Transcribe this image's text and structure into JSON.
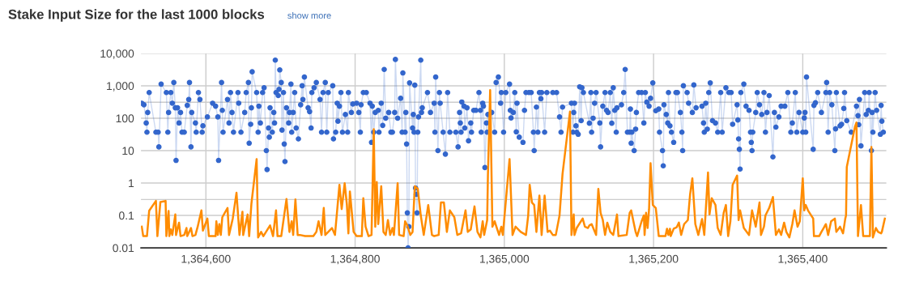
{
  "chart_data": {
    "type": "line",
    "title": "Stake Input Size for the last 1000 blocks",
    "annotations": [
      "show more"
    ],
    "log": true,
    "grid": true,
    "xlim": [
      1364513,
      1365512
    ],
    "xticks": [
      {
        "value": 1364600,
        "label": "1,364,600"
      },
      {
        "value": 1364800,
        "label": "1,364,800"
      },
      {
        "value": 1365000,
        "label": "1,365,000"
      },
      {
        "value": 1365200,
        "label": "1,365,200"
      },
      {
        "value": 1365400,
        "label": "1,365,400"
      }
    ],
    "ylim": [
      0.01,
      10000
    ],
    "yticks": [
      0.01,
      0.1,
      {
        "value": 0.31,
        "label": null
      },
      1,
      10,
      100,
      {
        "value": 312,
        "label": null
      },
      {
        "value": 1000,
        "label": "1,000"
      },
      {
        "value": 10000,
        "label": "10,000"
      }
    ],
    "series": [
      {
        "marker": "circle",
        "color": "#3366cc",
        "x": [
          1364514,
          1364517,
          1364520,
          1364521,
          1364522,
          1364524,
          1364533,
          1364536,
          1364537,
          1364540,
          1364547,
          1364549,
          1364550,
          1364553,
          1364555,
          1364557,
          1364559,
          1364560,
          1364562,
          1364564,
          1364566,
          1364568,
          1364571,
          1364575,
          1364577,
          1364578,
          1364580,
          1364581,
          1364586,
          1364587,
          1364590,
          1364592,
          1364595,
          1364596,
          1364602,
          1364609,
          1364613,
          1364616,
          1364617,
          1364621,
          1364622,
          1364623,
          1364629,
          1364631,
          1364633,
          1364635,
          1364637,
          1364643,
          1364644,
          1364647,
          1364652,
          1364654,
          1364657,
          1364658,
          1364660,
          1364661,
          1364662,
          1364668,
          1364670,
          1364671,
          1364673,
          1364676,
          1364678,
          1364681,
          1364682,
          1364684,
          1364685,
          1364686,
          1364689,
          1364691,
          1364692,
          1364693,
          1364694,
          1364697,
          1364698,
          1364699,
          1364701,
          1364702,
          1364704,
          1364705,
          1364706,
          1364708,
          1364711,
          1364712,
          1364714,
          1364715,
          1364717,
          1364719,
          1364721,
          1364724,
          1364727,
          1364729,
          1364730,
          1364732,
          1364737,
          1364739,
          1364741,
          1364742,
          1364745,
          1364748,
          1364753,
          1364755,
          1364757,
          1364760,
          1364762,
          1364764,
          1364770,
          1364771,
          1364774,
          1364776,
          1364777,
          1364779,
          1364781,
          1364783,
          1364787,
          1364790,
          1364791,
          1364795,
          1364797,
          1364802,
          1364805,
          1364807,
          1364808,
          1364811,
          1364815,
          1364820,
          1364822,
          1364823,
          1364825,
          1364827,
          1364831,
          1364832,
          1364835,
          1364837,
          1364839,
          1364841,
          1364845,
          1364848,
          1364850,
          1364853,
          1364854,
          1364857,
          1364861,
          1364863,
          1364864,
          1364867,
          1364868,
          1364869,
          1364870,
          1364871,
          1364872,
          1364873,
          1364877,
          1364878,
          1364879,
          1364880,
          1364881,
          1364882,
          1364883,
          1364884,
          1364885,
          1364888,
          1364889,
          1364890,
          1364897,
          1364901,
          1364906,
          1364907,
          1364908,
          1364911,
          1364913,
          1364914,
          1364918,
          1364921,
          1364924,
          1364927,
          1364935,
          1364938,
          1364940,
          1364941,
          1364942,
          1364943,
          1364946,
          1364947,
          1364950,
          1364952,
          1364955,
          1364956,
          1364959,
          1364962,
          1364966,
          1364968,
          1364969,
          1364971,
          1364972,
          1364974,
          1364976,
          1364977,
          1364978,
          1364983,
          1364987,
          1364989,
          1364992,
          1364995,
          1364996,
          1364999,
          1365002,
          1365007,
          1365008,
          1365009,
          1365012,
          1365014,
          1365016,
          1365017,
          1365020,
          1365025,
          1365027,
          1365029,
          1365033,
          1365036,
          1365039,
          1365040,
          1365043,
          1365045,
          1365047,
          1365049,
          1365050,
          1365054,
          1365057,
          1365065,
          1365070,
          1365074,
          1365076,
          1365078,
          1365090,
          1365092,
          1365093,
          1365094,
          1365096,
          1365097,
          1365099,
          1365101,
          1365103,
          1365104,
          1365106,
          1365114,
          1365116,
          1365117,
          1365119,
          1365121,
          1365123,
          1365128,
          1365129,
          1365132,
          1365135,
          1365137,
          1365139,
          1365142,
          1365144,
          1365146,
          1365148,
          1365150,
          1365151,
          1365157,
          1365160,
          1365162,
          1365165,
          1365168,
          1365169,
          1365170,
          1365171,
          1365174,
          1365176,
          1365177,
          1365180,
          1365184,
          1365187,
          1365189,
          1365191,
          1365194,
          1365196,
          1365199,
          1365203,
          1365207,
          1365208,
          1365212,
          1365213,
          1365214,
          1365217,
          1365219,
          1365220,
          1365222,
          1365224,
          1365227,
          1365230,
          1365232,
          1365236,
          1365238,
          1365239,
          1365240,
          1365245,
          1365247,
          1365252,
          1365254,
          1365257,
          1365265,
          1365267,
          1365268,
          1365270,
          1365272,
          1365274,
          1365276,
          1365279,
          1365283,
          1365286,
          1365290,
          1365292,
          1365297,
          1365301,
          1365304,
          1365306,
          1365312,
          1365313,
          1365314,
          1365315,
          1365316,
          1365317,
          1365321,
          1365324,
          1365328,
          1365330,
          1365331,
          1365332,
          1365333,
          1365337,
          1365339,
          1365342,
          1365345,
          1365348,
          1365350,
          1365352,
          1365355,
          1365360,
          1365362,
          1365364,
          1365368,
          1365371,
          1365376,
          1365380,
          1365384,
          1365386,
          1365390,
          1365392,
          1365395,
          1365400,
          1365402,
          1365403,
          1365404,
          1365405,
          1365414,
          1365415,
          1365417,
          1365420,
          1365425,
          1365431,
          1365432,
          1365434,
          1365436,
          1365439,
          1365443,
          1365444,
          1365445,
          1365450,
          1365452,
          1365455,
          1365456,
          1365459,
          1365465,
          1365472,
          1365474,
          1365475,
          1365476,
          1365478,
          1365483,
          1365485,
          1365488,
          1365489,
          1365492,
          1365493,
          1365494,
          1365497,
          1365499,
          1365504,
          1365505,
          1365506,
          1365508
        ],
        "values": [
          290,
          260,
          71,
          37,
          150,
          620,
          37,
          37,
          13,
          1130,
          620,
          37,
          150,
          620,
          290,
          1260,
          210,
          5,
          210,
          71,
          150,
          37,
          37,
          250,
          380,
          1260,
          13,
          150,
          71,
          37,
          620,
          380,
          37,
          58,
          110,
          290,
          235,
          110,
          5,
          1260,
          175,
          37,
          380,
          71,
          620,
          150,
          37,
          620,
          290,
          37,
          150,
          620,
          1260,
          17,
          65,
          210,
          2700,
          620,
          37,
          235,
          71,
          620,
          870,
          10,
          2.6,
          50,
          26,
          210,
          37,
          150,
          71,
          6200,
          620,
          500,
          780,
          3100,
          1260,
          43,
          620,
          16,
          4.6,
          210,
          71,
          150,
          1130,
          37,
          150,
          620,
          50,
          23,
          260,
          1000,
          380,
          1860,
          210,
          160,
          50,
          620,
          870,
          1260,
          380,
          37,
          620,
          1260,
          37,
          620,
          1000,
          23,
          37,
          290,
          81,
          235,
          620,
          37,
          130,
          37,
          620,
          150,
          275,
          290,
          150,
          37,
          260,
          620,
          620,
          290,
          18,
          235,
          37,
          150,
          175,
          37,
          290,
          60,
          3200,
          100,
          150,
          37,
          37,
          150,
          6500,
          100,
          410,
          37,
          2500,
          37,
          150,
          16,
          0.12,
          0.01,
          0.045,
          1230,
          50,
          130,
          37,
          1050,
          0.7,
          0.45,
          0.12,
          37,
          110,
          6200,
          150,
          210,
          620,
          150,
          290,
          37,
          1860,
          10,
          620,
          290,
          37,
          7.8,
          620,
          37,
          37,
          13,
          150,
          71,
          37,
          316,
          235,
          50,
          210,
          20,
          71,
          37,
          175,
          175,
          620,
          175,
          37,
          290,
          235,
          3.0,
          71,
          37,
          130,
          150,
          37,
          1260,
          1860,
          290,
          620,
          37,
          620,
          1130,
          175,
          102,
          150,
          620,
          38,
          290,
          26,
          18,
          175,
          620,
          620,
          620,
          37,
          10,
          220,
          37,
          620,
          400,
          620,
          37,
          620,
          620,
          620,
          110,
          37,
          220,
          290,
          37,
          150,
          290,
          58,
          37,
          32,
          930,
          84,
          870,
          620,
          70,
          620,
          37,
          100,
          290,
          620,
          71,
          13,
          235,
          620,
          175,
          150,
          620,
          70,
          870,
          175,
          37,
          210,
          260,
          620,
          3200,
          37,
          37,
          193,
          17,
          37,
          10,
          46,
          150,
          620,
          620,
          71,
          620,
          312,
          235,
          410,
          1230,
          170,
          193,
          37,
          10,
          3.4,
          260,
          130,
          71,
          620,
          58,
          37,
          18,
          620,
          620,
          150,
          37,
          10,
          1000,
          620,
          290,
          150,
          1060,
          210,
          235,
          71,
          37,
          290,
          46,
          620,
          1230,
          84,
          71,
          37,
          620,
          37,
          870,
          620,
          620,
          65,
          260,
          88,
          23,
          11,
          2.7,
          620,
          1130,
          235,
          175,
          37,
          18,
          10,
          37,
          150,
          620,
          260,
          130,
          620,
          37,
          150,
          500,
          6.4,
          150,
          53,
          110,
          235,
          235,
          620,
          37,
          71,
          620,
          37,
          150,
          37,
          102,
          150,
          37,
          1860,
          11,
          250,
          300,
          620,
          150,
          620,
          1260,
          37,
          620,
          260,
          10,
          47,
          620,
          58,
          65,
          200,
          620,
          84,
          37,
          235,
          120,
          63,
          380,
          14,
          620,
          130,
          175,
          620,
          10,
          150,
          37,
          620,
          175,
          32,
          250,
          81,
          37
        ]
      },
      {
        "marker": "none",
        "color": "#ff8c00",
        "x": [
          1364514,
          1364516,
          1364521,
          1364524,
          1364533,
          1364535,
          1364539,
          1364546,
          1364547,
          1364550,
          1364551,
          1364553,
          1364555,
          1364559,
          1364560,
          1364564,
          1364566,
          1364571,
          1364574,
          1364575,
          1364580,
          1364582,
          1364586,
          1364589,
          1364594,
          1364596,
          1364602,
          1364604,
          1364613,
          1364614,
          1364616,
          1364618,
          1364620,
          1364622,
          1364629,
          1364631,
          1364636,
          1364641,
          1364645,
          1364649,
          1364650,
          1364656,
          1364658,
          1364661,
          1364668,
          1364670,
          1364674,
          1364677,
          1364686,
          1364690,
          1364694,
          1364696,
          1364701,
          1364708,
          1364712,
          1364715,
          1364717,
          1364720,
          1364723,
          1364726,
          1364733,
          1364744,
          1364748,
          1364751,
          1364755,
          1364758,
          1364760,
          1364769,
          1364773,
          1364779,
          1364782,
          1364786,
          1364789,
          1364791,
          1364793,
          1364798,
          1364802,
          1364809,
          1364811,
          1364814,
          1364818,
          1364822,
          1364823,
          1364825,
          1364827,
          1364829,
          1364831,
          1364835,
          1364838,
          1364841,
          1364844,
          1364847,
          1364850,
          1364852,
          1364857,
          1364859,
          1364865,
          1364867,
          1364870,
          1364874,
          1364877,
          1364880,
          1364884,
          1364888,
          1364892,
          1364898,
          1364903,
          1364906,
          1364912,
          1364915,
          1364919,
          1364923,
          1364927,
          1364933,
          1364937,
          1364942,
          1364948,
          1364951,
          1364955,
          1364960,
          1364964,
          1364968,
          1364971,
          1364973,
          1364977,
          1364978,
          1364981,
          1364984,
          1364987,
          1364993,
          1364996,
          1364998,
          1365007,
          1365011,
          1365015,
          1365022,
          1365029,
          1365032,
          1365034,
          1365037,
          1365040,
          1365043,
          1365047,
          1365050,
          1365054,
          1365058,
          1365061,
          1365065,
          1365069,
          1365074,
          1365078,
          1365088,
          1365090,
          1365093,
          1365094,
          1365097,
          1365105,
          1365108,
          1365112,
          1365114,
          1365117,
          1365123,
          1365126,
          1365129,
          1365132,
          1365135,
          1365138,
          1365142,
          1365146,
          1365151,
          1365153,
          1365164,
          1365168,
          1365170,
          1365173,
          1365176,
          1365178,
          1365184,
          1365187,
          1365188,
          1365190,
          1365192,
          1365194,
          1365196,
          1365199,
          1365203,
          1365207,
          1365216,
          1365218,
          1365220,
          1365222,
          1365223,
          1365227,
          1365231,
          1365234,
          1365237,
          1365241,
          1365246,
          1365249,
          1365252,
          1365256,
          1365260,
          1365265,
          1365268,
          1365273,
          1365275,
          1365278,
          1365283,
          1365286,
          1365290,
          1365294,
          1365297,
          1365300,
          1365303,
          1365306,
          1365312,
          1365314,
          1365316,
          1365321,
          1365328,
          1365332,
          1365337,
          1365342,
          1365344,
          1365348,
          1365350,
          1365355,
          1365360,
          1365364,
          1365368,
          1365371,
          1365375,
          1365378,
          1365382,
          1365386,
          1365389,
          1365393,
          1365396,
          1365400,
          1365402,
          1365404,
          1365407,
          1365414,
          1365415,
          1365422,
          1365425,
          1365431,
          1365434,
          1365438,
          1365443,
          1365445,
          1365450,
          1365454,
          1365457,
          1365458,
          1365459,
          1365470,
          1365472,
          1365474,
          1365478,
          1365481,
          1365490,
          1365492,
          1365494,
          1365498,
          1365501,
          1365505,
          1365506,
          1365510
        ],
        "values": [
          0.045,
          0.023,
          0.023,
          0.14,
          0.28,
          0.023,
          0.26,
          0.28,
          0.023,
          0.137,
          0.023,
          0.037,
          0.025,
          0.107,
          0.025,
          0.06,
          0.023,
          0.025,
          0.041,
          0.023,
          0.041,
          0.023,
          0.025,
          0.045,
          0.143,
          0.034,
          0.08,
          0.023,
          0.023,
          0.066,
          0.025,
          0.054,
          0.025,
          0.088,
          0.17,
          0.025,
          0.08,
          0.5,
          0.025,
          0.13,
          0.025,
          0.107,
          0.023,
          0.23,
          5.5,
          0.021,
          0.031,
          0.023,
          0.049,
          0.023,
          0.143,
          0.023,
          0.023,
          0.32,
          0.031,
          0.066,
          0.025,
          0.31,
          0.025,
          0.025,
          0.023,
          0.023,
          0.031,
          0.066,
          0.025,
          0.17,
          0.025,
          0.041,
          0.025,
          0.88,
          0.157,
          0.98,
          0.21,
          0.028,
          0.55,
          0.031,
          0.023,
          0.023,
          0.34,
          0.045,
          0.023,
          0.025,
          0.31,
          46,
          0.045,
          1.07,
          0.054,
          0.8,
          0.031,
          0.025,
          0.072,
          0.025,
          0.041,
          0.025,
          0.98,
          0.025,
          0.023,
          0.066,
          0.049,
          0.025,
          0.031,
          0.8,
          0.66,
          0.1,
          0.025,
          0.21,
          0.025,
          0.023,
          0.025,
          0.25,
          0.25,
          0.031,
          0.143,
          0.088,
          0.025,
          0.028,
          0.143,
          0.031,
          0.037,
          0.19,
          0.031,
          0.021,
          0.066,
          0.025,
          0.072,
          1.7,
          740,
          0.045,
          0.066,
          0.025,
          0.045,
          0.025,
          5.5,
          0.025,
          0.045,
          0.031,
          0.025,
          0.1,
          0.88,
          0.25,
          0.21,
          0.031,
          0.41,
          0.025,
          0.41,
          0.031,
          0.034,
          0.025,
          0.025,
          0.1,
          1.9,
          160,
          0.025,
          0.107,
          0.025,
          0.041,
          0.08,
          0.045,
          0.041,
          0.049,
          0.054,
          0.025,
          0.66,
          0.12,
          0.072,
          0.025,
          0.06,
          0.031,
          0.025,
          0.107,
          0.023,
          0.025,
          0.12,
          0.143,
          0.066,
          0.031,
          0.023,
          0.066,
          0.1,
          0.025,
          0.12,
          0.041,
          0.157,
          4.1,
          0.21,
          0.17,
          0.023,
          0.023,
          0.039,
          0.025,
          0.039,
          0.023,
          0.039,
          0.043,
          0.06,
          0.025,
          0.054,
          0.072,
          0.45,
          1.4,
          0.054,
          0.025,
          0.077,
          0.025,
          2.1,
          0.107,
          0.34,
          0.21,
          0.041,
          0.025,
          0.12,
          0.21,
          0.023,
          0.066,
          0.88,
          1.7,
          0.072,
          0.143,
          0.041,
          0.025,
          0.143,
          0.045,
          0.25,
          0.025,
          0.045,
          0.1,
          0.17,
          0.37,
          0.025,
          0.037,
          0.025,
          0.06,
          0.031,
          0.021,
          0.054,
          0.143,
          0.045,
          0.066,
          1.4,
          0.143,
          0.21,
          0.143,
          0.08,
          0.023,
          0.023,
          0.031,
          0.054,
          0.025,
          0.066,
          0.08,
          0.031,
          0.045,
          0.028,
          0.08,
          0.1,
          3.1,
          55,
          74,
          0.023,
          0.21,
          0.023,
          0.023,
          13,
          0.021,
          0.041,
          0.031,
          0.028,
          0.031,
          0.08
        ]
      }
    ]
  }
}
